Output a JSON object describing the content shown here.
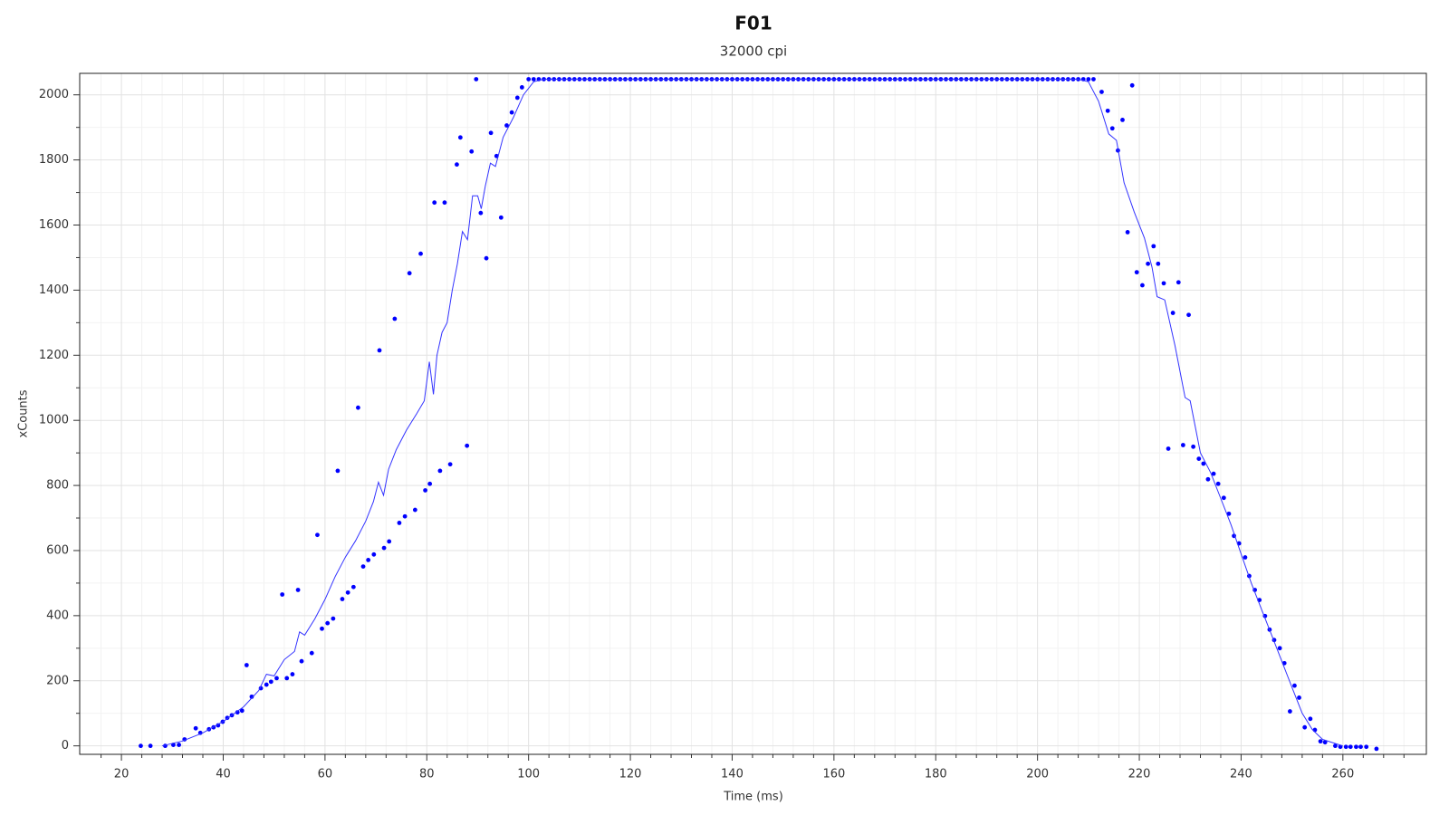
{
  "chart_data": {
    "type": "scatter",
    "title": "F01",
    "subtitle": "32000 cpi",
    "xlabel": "Time (ms)",
    "ylabel": "xCounts",
    "xlim": [
      11.8,
      276.4
    ],
    "ylim": [
      -26,
      2066
    ],
    "xticks": [
      20,
      40,
      60,
      80,
      100,
      120,
      140,
      160,
      180,
      200,
      220,
      240,
      260
    ],
    "xminorticks": [
      16,
      24,
      28,
      32,
      36,
      44,
      48,
      52,
      56,
      64,
      68,
      72,
      76,
      84,
      88,
      92,
      96,
      104,
      108,
      112,
      116,
      124,
      128,
      132,
      136,
      144,
      148,
      152,
      156,
      164,
      168,
      172,
      176,
      184,
      188,
      192,
      196,
      204,
      208,
      212,
      216,
      224,
      228,
      232,
      236,
      244,
      248,
      252,
      256,
      264,
      268,
      272
    ],
    "yticks": [
      0,
      200,
      400,
      600,
      800,
      1000,
      1200,
      1400,
      1600,
      1800,
      2000
    ],
    "yminorticks": [
      100,
      300,
      500,
      700,
      900,
      1100,
      1300,
      1500,
      1700,
      1900
    ],
    "grid": true,
    "series": [
      {
        "style": "points",
        "color": "#0000ff",
        "x": [
          23.8,
          25.7,
          28.6,
          30.2,
          31.3,
          32.4,
          34.6,
          35.5,
          37.2,
          38.1,
          39,
          39.9,
          40.8,
          41.7,
          42.8,
          43.7,
          44.6,
          45.6,
          47.4,
          48.5,
          49.4,
          50.5,
          51.6,
          52.5,
          53.6,
          54.7,
          55.4,
          57.4,
          58.5,
          59.4,
          60.5,
          61.6,
          62.5,
          63.4,
          64.5,
          65.6,
          66.5,
          67.5,
          68.5,
          69.6,
          70.7,
          71.6,
          72.6,
          73.7,
          74.6,
          75.7,
          76.6,
          77.7,
          78.8,
          79.7,
          80.6,
          81.5,
          82.6,
          83.5,
          84.6,
          85.9,
          86.6,
          87.9,
          88.8,
          89.7,
          90.6,
          91.7,
          92.6,
          93.7,
          94.6,
          95.7,
          96.7,
          97.8,
          98.7,
          100,
          101,
          102,
          103,
          104,
          105,
          106,
          107,
          108,
          109,
          110,
          111,
          112,
          113,
          114,
          115,
          116,
          117,
          118,
          119,
          120,
          121,
          122,
          123,
          124,
          125,
          126,
          127,
          128,
          129,
          130,
          131,
          132,
          133,
          134,
          135,
          136,
          137,
          138,
          139,
          140,
          141,
          142,
          143,
          144,
          145,
          146,
          147,
          148,
          149,
          150,
          151,
          152,
          153,
          154,
          155,
          156,
          157,
          158,
          159,
          160,
          161,
          162,
          163,
          164,
          165,
          166,
          167,
          168,
          169,
          170,
          171,
          172,
          173,
          174,
          175,
          176,
          177,
          178,
          179,
          180,
          181,
          182,
          183,
          184,
          185,
          186,
          187,
          188,
          189,
          190,
          191,
          192,
          193,
          194,
          195,
          196,
          197,
          198,
          199,
          200,
          201,
          202,
          203,
          204,
          205,
          206,
          207,
          208,
          209,
          210,
          211,
          212.6,
          213.8,
          214.7,
          215.8,
          216.7,
          217.7,
          218.6,
          219.5,
          220.6,
          221.7,
          222.8,
          223.7,
          224.8,
          225.7,
          226.6,
          227.7,
          228.6,
          229.7,
          230.6,
          231.7,
          232.6,
          233.5,
          234.6,
          235.5,
          236.6,
          237.6,
          238.6,
          239.6,
          240.8,
          241.6,
          242.7,
          243.6,
          244.7,
          245.6,
          246.5,
          247.6,
          248.5,
          249.6,
          250.5,
          251.4,
          252.5,
          253.6,
          254.5,
          255.6,
          256.5,
          258.5,
          259.5,
          260.6,
          261.5,
          262.6,
          263.5,
          264.6,
          266.6
        ],
        "values": [
          0,
          0,
          0,
          3,
          3,
          20,
          54,
          40,
          51,
          57,
          63,
          74,
          86,
          94,
          103,
          108,
          248,
          151,
          177,
          188,
          197,
          208,
          465,
          208,
          220,
          479,
          260,
          285,
          648,
          360,
          377,
          391,
          845,
          451,
          471,
          488,
          1039,
          551,
          571,
          588,
          1215,
          608,
          628,
          1312,
          685,
          705,
          1452,
          725,
          1512,
          785,
          805,
          1669,
          845,
          1669,
          865,
          1786,
          1869,
          922,
          1826,
          2048,
          1637,
          1498,
          1883,
          1812,
          1623,
          1906,
          1946,
          1991,
          2023,
          2048,
          2048,
          2048,
          2048,
          2048,
          2048,
          2048,
          2048,
          2048,
          2048,
          2048,
          2048,
          2048,
          2048,
          2048,
          2048,
          2048,
          2048,
          2048,
          2048,
          2048,
          2048,
          2048,
          2048,
          2048,
          2048,
          2048,
          2048,
          2048,
          2048,
          2048,
          2048,
          2048,
          2048,
          2048,
          2048,
          2048,
          2048,
          2048,
          2048,
          2048,
          2048,
          2048,
          2048,
          2048,
          2048,
          2048,
          2048,
          2048,
          2048,
          2048,
          2048,
          2048,
          2048,
          2048,
          2048,
          2048,
          2048,
          2048,
          2048,
          2048,
          2048,
          2048,
          2048,
          2048,
          2048,
          2048,
          2048,
          2048,
          2048,
          2048,
          2048,
          2048,
          2048,
          2048,
          2048,
          2048,
          2048,
          2048,
          2048,
          2048,
          2048,
          2048,
          2048,
          2048,
          2048,
          2048,
          2048,
          2048,
          2048,
          2048,
          2048,
          2048,
          2048,
          2048,
          2048,
          2048,
          2048,
          2048,
          2048,
          2048,
          2048,
          2048,
          2048,
          2048,
          2048,
          2048,
          2048,
          2048,
          2048,
          2048,
          2048,
          2009,
          1951,
          1897,
          1829,
          1923,
          1578,
          2029,
          1455,
          1415,
          1481,
          1535,
          1481,
          1421,
          913,
          1330,
          1424,
          924,
          1324,
          919,
          882,
          867,
          819,
          836,
          805,
          762,
          713,
          645,
          622,
          579,
          522,
          479,
          448,
          399,
          357,
          325,
          300,
          254,
          106,
          185,
          148,
          57,
          83,
          49,
          14,
          11,
          0,
          -3,
          -3,
          -3,
          -3,
          -3,
          -3,
          -9
        ]
      },
      {
        "style": "line",
        "color": "#3333ff",
        "x": [
          28,
          32,
          36,
          40,
          44,
          47,
          48.5,
          50,
          52,
          54,
          55,
          56,
          58,
          60,
          62,
          64,
          66,
          68,
          69.5,
          70.5,
          71.5,
          72.5,
          74,
          76,
          78,
          79.5,
          80.5,
          81.3,
          82,
          83,
          84,
          85,
          86,
          87,
          88,
          89,
          90,
          90.7,
          91.5,
          92.5,
          93.5,
          95,
          97,
          99,
          101,
          103,
          208,
          210,
          212,
          214,
          215.5,
          217,
          219,
          221,
          222.5,
          223.5,
          225,
          227,
          229,
          230,
          232,
          234,
          236,
          238,
          240,
          242,
          244,
          246,
          248,
          250,
          252,
          254,
          256,
          258,
          260
        ],
        "values": [
          0,
          15,
          40,
          75,
          120,
          170,
          220,
          215,
          265,
          290,
          350,
          340,
          390,
          450,
          520,
          580,
          630,
          690,
          750,
          810,
          770,
          850,
          910,
          970,
          1020,
          1060,
          1180,
          1080,
          1200,
          1270,
          1300,
          1400,
          1480,
          1580,
          1555,
          1690,
          1690,
          1650,
          1720,
          1790,
          1780,
          1870,
          1930,
          2000,
          2040,
          2048,
          2048,
          2040,
          1980,
          1880,
          1860,
          1730,
          1640,
          1560,
          1470,
          1380,
          1370,
          1230,
          1070,
          1060,
          900,
          840,
          760,
          680,
          590,
          500,
          420,
          340,
          260,
          180,
          100,
          50,
          20,
          10,
          0
        ]
      }
    ]
  }
}
